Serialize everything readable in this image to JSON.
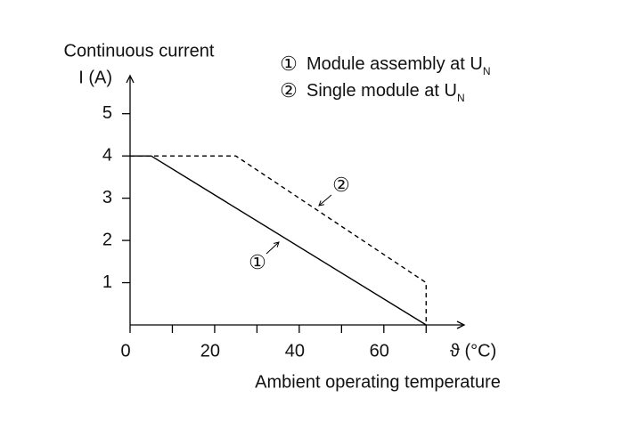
{
  "chart_data": {
    "type": "line",
    "y_label": [
      "Continuous current",
      "I (A)"
    ],
    "x_unit_label": "ϑ (°C)",
    "x_label": "Ambient operating temperature",
    "xlim": [
      0,
      79
    ],
    "ylim": [
      0,
      5.9
    ],
    "xticks": [
      0,
      20,
      40,
      60
    ],
    "x_minor_ticks": [
      10,
      30,
      50,
      70
    ],
    "yticks": [
      1,
      2,
      3,
      4,
      5
    ],
    "series": [
      {
        "name": "Module assembly at U",
        "name_subscript": "N",
        "marker": "①",
        "color": "#000000",
        "line_style": "solid",
        "x": [
          0,
          5,
          70
        ],
        "values": [
          4,
          4,
          0
        ]
      },
      {
        "name": "Single module at U",
        "name_subscript": "N",
        "marker": "②",
        "color": "#000000",
        "line_style": "dashed",
        "x": [
          0,
          25,
          70,
          70
        ],
        "values": [
          4,
          4,
          1,
          0
        ]
      }
    ]
  }
}
